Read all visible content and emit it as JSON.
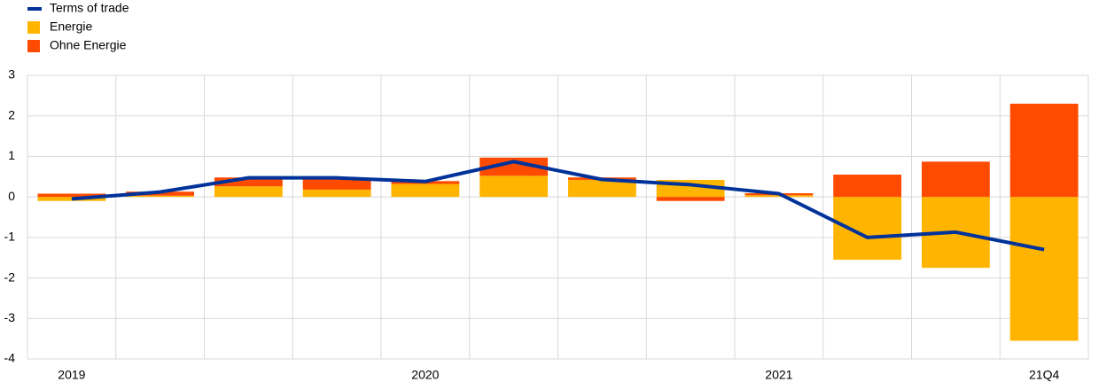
{
  "chart_data": {
    "type": "stacked-bar-line",
    "categories": [
      "2019",
      null,
      null,
      null,
      "2020",
      null,
      null,
      null,
      "2021",
      null,
      null,
      "21Q4"
    ],
    "series": [
      {
        "name": "Terms of trade",
        "kind": "line",
        "color": "#003299",
        "values": [
          -0.05,
          0.12,
          0.47,
          0.47,
          0.38,
          0.87,
          0.43,
          0.3,
          0.08,
          -1.0,
          -0.87,
          -1.3
        ]
      },
      {
        "name": "Energie",
        "kind": "bar",
        "color": "#ffb400",
        "values": [
          -0.1,
          0.03,
          0.26,
          0.18,
          0.32,
          0.52,
          0.42,
          0.42,
          0.04,
          -1.55,
          -1.75,
          -3.55
        ]
      },
      {
        "name": "Ohne Energie",
        "kind": "bar",
        "color": "#ff4b00",
        "values": [
          0.08,
          0.1,
          0.22,
          0.27,
          0.07,
          0.45,
          0.06,
          -0.1,
          0.05,
          0.55,
          0.87,
          2.3
        ]
      }
    ],
    "ylim": [
      -4,
      3
    ],
    "yticks": [
      -4,
      -3,
      -2,
      -1,
      0,
      1,
      2,
      3
    ],
    "grid": true
  }
}
